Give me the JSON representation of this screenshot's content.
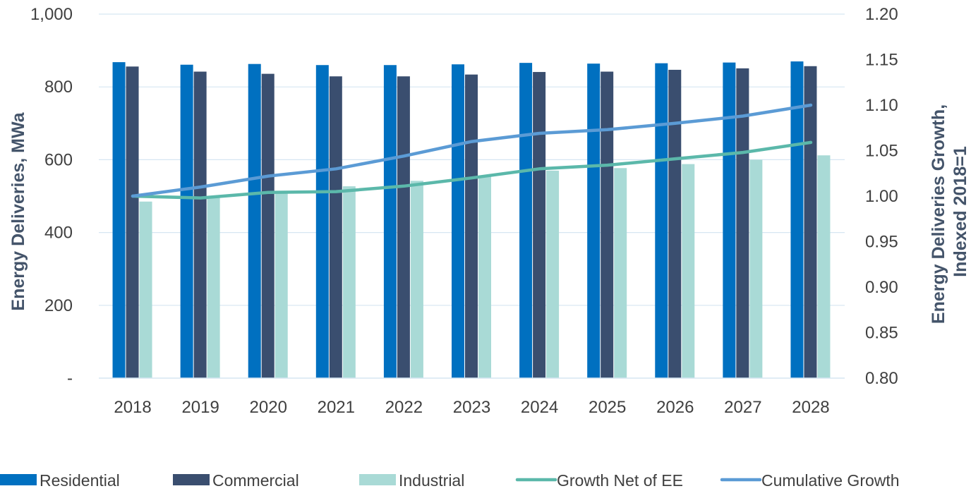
{
  "chart_data": {
    "type": "bar",
    "title": "",
    "categories": [
      "2018",
      "2019",
      "2020",
      "2021",
      "2022",
      "2023",
      "2024",
      "2025",
      "2026",
      "2027",
      "2028"
    ],
    "series": [
      {
        "name": "Residential",
        "type": "bar",
        "axis": "left",
        "color": "#0070c0",
        "values": [
          868,
          861,
          863,
          860,
          860,
          862,
          866,
          864,
          865,
          867,
          870
        ]
      },
      {
        "name": "Commercial",
        "type": "bar",
        "axis": "left",
        "color": "#3a4e6f",
        "values": [
          856,
          842,
          836,
          829,
          829,
          834,
          841,
          842,
          847,
          851,
          857
        ]
      },
      {
        "name": "Industrial",
        "type": "bar",
        "axis": "left",
        "color": "#a9dad6",
        "values": [
          485,
          498,
          510,
          527,
          542,
          556,
          570,
          577,
          588,
          600,
          612
        ]
      },
      {
        "name": "Growth Net of EE",
        "type": "line",
        "axis": "right",
        "color": "#5bb8aa",
        "values": [
          1.0,
          0.998,
          1.004,
          1.005,
          1.011,
          1.02,
          1.03,
          1.034,
          1.041,
          1.048,
          1.059
        ]
      },
      {
        "name": "Cumulative Growth",
        "type": "line",
        "axis": "right",
        "color": "#5b9bd5",
        "values": [
          1.0,
          1.01,
          1.022,
          1.03,
          1.044,
          1.06,
          1.069,
          1.073,
          1.08,
          1.088,
          1.1
        ]
      }
    ],
    "y_left": {
      "label": "Energy Deliveries, MWa",
      "range": [
        0,
        1000
      ],
      "ticks": [
        0,
        200,
        400,
        600,
        800,
        1000
      ],
      "tick_labels": [
        "-",
        "200",
        "400",
        "600",
        "800",
        "1,000"
      ]
    },
    "y_right": {
      "label_lines": [
        "Energy Deliveries Growth,",
        "Indexed 2018=1"
      ],
      "range": [
        0.8,
        1.2
      ],
      "ticks": [
        0.8,
        0.85,
        0.9,
        0.95,
        1.0,
        1.05,
        1.1,
        1.15,
        1.2
      ],
      "tick_labels": [
        "0.80",
        "0.85",
        "0.90",
        "0.95",
        "1.00",
        "1.05",
        "1.10",
        "1.15",
        "1.20"
      ]
    },
    "grid": true,
    "legend_position": "bottom"
  }
}
